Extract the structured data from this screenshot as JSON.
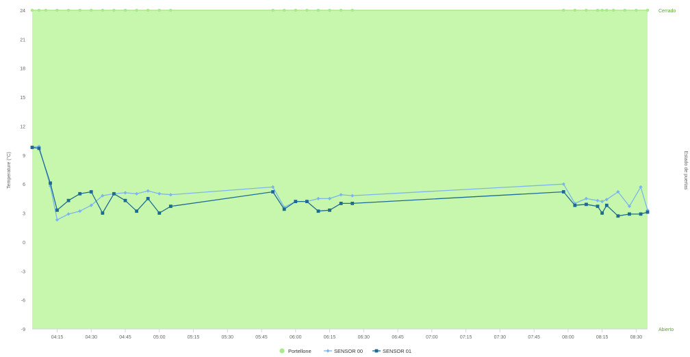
{
  "chart_data": {
    "type": "line",
    "xlabel": "",
    "ylabel": "Temperature (°C)",
    "y2label": "Estado de puertas",
    "ylim": [
      -9,
      24
    ],
    "yticks": [
      "24",
      "21",
      "18",
      "15",
      "12",
      "9",
      "6",
      "3",
      "0",
      "-3",
      "-6",
      "-9"
    ],
    "y2ticks": {
      "top": "Cerrado",
      "bottom": "Abierto"
    },
    "xlim": [
      "04:04",
      "08:35"
    ],
    "xticks": [
      "04:15",
      "04:30",
      "04:45",
      "05:00",
      "05:15",
      "05:30",
      "05:45",
      "06:00",
      "06:15",
      "06:30",
      "06:45",
      "07:00",
      "07:15",
      "07:30",
      "07:45",
      "08:00",
      "08:15",
      "08:30"
    ],
    "grid": true,
    "legend_position": "bottom",
    "series": [
      {
        "name": "Portellone",
        "kind": "area",
        "axis": "right",
        "color": "#c6f7ac",
        "marker_color": "#a8ec8a",
        "fill_state": "Cerrado",
        "marker_times": [
          "04:04",
          "04:07",
          "04:10",
          "04:15",
          "04:20",
          "04:25",
          "04:30",
          "04:35",
          "04:40",
          "04:45",
          "04:50",
          "04:55",
          "05:00",
          "05:05",
          "05:50",
          "05:55",
          "06:00",
          "06:05",
          "06:10",
          "06:15",
          "06:20",
          "06:25",
          "07:58",
          "08:03",
          "08:08",
          "08:13",
          "08:15",
          "08:17",
          "08:20",
          "08:25",
          "08:30",
          "08:35"
        ]
      },
      {
        "name": "SENSOR 00",
        "kind": "line",
        "axis": "left",
        "color": "#7cb5ec",
        "marker": "diamond",
        "points": [
          [
            "04:04",
            9.8
          ],
          [
            "04:07",
            9.9
          ],
          [
            "04:12",
            5.8
          ],
          [
            "04:15",
            2.3
          ],
          [
            "04:20",
            2.9
          ],
          [
            "04:25",
            3.2
          ],
          [
            "04:30",
            3.8
          ],
          [
            "04:35",
            4.8
          ],
          [
            "04:40",
            5.0
          ],
          [
            "04:45",
            5.1
          ],
          [
            "04:50",
            5.0
          ],
          [
            "04:55",
            5.3
          ],
          [
            "05:00",
            5.0
          ],
          [
            "05:05",
            4.9
          ],
          [
            "05:50",
            5.7
          ],
          [
            "05:55",
            3.6
          ],
          [
            "06:00",
            4.2
          ],
          [
            "06:05",
            4.2
          ],
          [
            "06:10",
            4.5
          ],
          [
            "06:15",
            4.5
          ],
          [
            "06:20",
            4.9
          ],
          [
            "06:25",
            4.8
          ],
          [
            "07:58",
            6.0
          ],
          [
            "08:03",
            4.0
          ],
          [
            "08:08",
            4.5
          ],
          [
            "08:13",
            4.3
          ],
          [
            "08:15",
            4.2
          ],
          [
            "08:17",
            4.4
          ],
          [
            "08:22",
            5.2
          ],
          [
            "08:27",
            3.7
          ],
          [
            "08:32",
            5.7
          ],
          [
            "08:35",
            3.3
          ]
        ]
      },
      {
        "name": "SENSOR 01",
        "kind": "line",
        "axis": "left",
        "color": "#1f6a94",
        "marker": "square",
        "points": [
          [
            "04:04",
            9.8
          ],
          [
            "04:07",
            9.7
          ],
          [
            "04:12",
            6.1
          ],
          [
            "04:15",
            3.3
          ],
          [
            "04:20",
            4.3
          ],
          [
            "04:25",
            5.0
          ],
          [
            "04:30",
            5.2
          ],
          [
            "04:35",
            3.0
          ],
          [
            "04:40",
            5.0
          ],
          [
            "04:45",
            4.3
          ],
          [
            "04:50",
            3.2
          ],
          [
            "04:55",
            4.5
          ],
          [
            "05:00",
            3.0
          ],
          [
            "05:05",
            3.7
          ],
          [
            "05:50",
            5.2
          ],
          [
            "05:55",
            3.4
          ],
          [
            "06:00",
            4.2
          ],
          [
            "06:05",
            4.2
          ],
          [
            "06:10",
            3.2
          ],
          [
            "06:15",
            3.3
          ],
          [
            "06:20",
            4.0
          ],
          [
            "06:25",
            4.0
          ],
          [
            "07:58",
            5.2
          ],
          [
            "08:03",
            3.8
          ],
          [
            "08:08",
            3.9
          ],
          [
            "08:13",
            3.7
          ],
          [
            "08:15",
            3.0
          ],
          [
            "08:17",
            3.8
          ],
          [
            "08:22",
            2.7
          ],
          [
            "08:27",
            2.9
          ],
          [
            "08:32",
            2.9
          ],
          [
            "08:35",
            3.1
          ]
        ]
      }
    ]
  }
}
